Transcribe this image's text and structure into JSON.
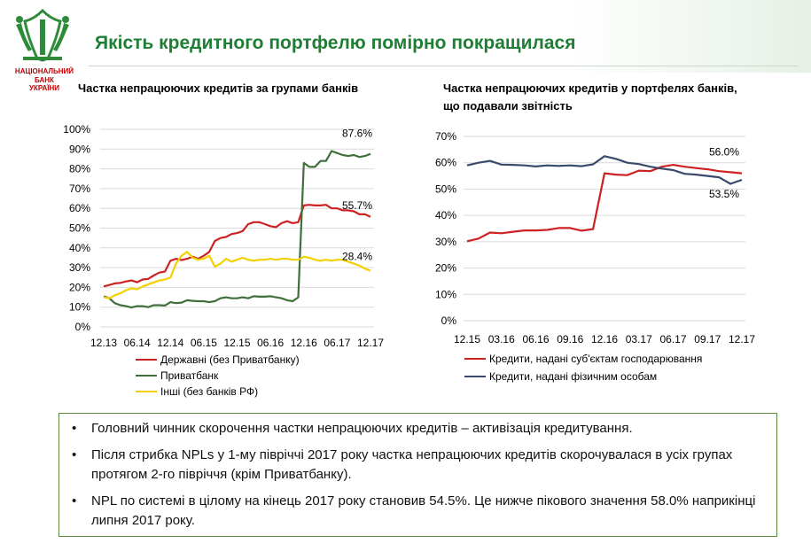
{
  "header": {
    "title": "Якість кредитного портфелю помірно покращилася",
    "bank_name_lines": [
      "НАЦІОНАЛЬНИЙ",
      "БАНК",
      "УКРАЇНИ"
    ],
    "colors": {
      "title": "#1e7e34",
      "bank_name": "#c00000"
    }
  },
  "chart_data": [
    {
      "type": "line",
      "title": "Частка непрацюючих кредитів за групами банків",
      "xlabel": "",
      "ylabel": "",
      "ylim": [
        0,
        100
      ],
      "yticks": [
        "0%",
        "10%",
        "20%",
        "30%",
        "40%",
        "50%",
        "60%",
        "70%",
        "80%",
        "90%",
        "100%"
      ],
      "xticks": [
        "12.13",
        "06.14",
        "12.14",
        "06.15",
        "12.15",
        "06.16",
        "12.16",
        "06.17",
        "12.17"
      ],
      "n_points": 49,
      "legend_position": "bottom",
      "series": [
        {
          "name": "Державні (без Приватбанку)",
          "color": "#cc2222",
          "end_label": "55.7%",
          "values": [
            20.5,
            21.2,
            22,
            22.3,
            23,
            23.5,
            22.6,
            24,
            24.3,
            26,
            27.5,
            28,
            33.5,
            34.5,
            33.8,
            34.5,
            35.5,
            34.5,
            36,
            38,
            43.5,
            45,
            45.5,
            47,
            47.5,
            48.5,
            52,
            53,
            53,
            52,
            51,
            50.5,
            52.5,
            53.5,
            52.5,
            53,
            61.5,
            61.8,
            61.5,
            61.5,
            61.8,
            60,
            60,
            59,
            59,
            58.5,
            57,
            57,
            55.7
          ]
        },
        {
          "name": "Приватбанк",
          "color": "#3f6f3a",
          "end_label": "87.6%",
          "values": [
            15.5,
            14.5,
            12,
            11,
            10.5,
            9.8,
            10.5,
            10.5,
            10,
            11,
            11,
            10.8,
            12.5,
            12,
            12.3,
            13.5,
            13.2,
            13,
            13,
            12.5,
            13,
            14.5,
            15,
            14.5,
            14.5,
            15,
            14.5,
            15.5,
            15.3,
            15.3,
            15.5,
            15,
            14.5,
            13.5,
            13,
            15,
            83,
            81,
            81,
            84,
            84,
            89,
            88,
            87,
            86.5,
            87,
            86,
            86.5,
            87.6
          ]
        },
        {
          "name": "Інші (без банків РФ)",
          "color": "#f5d000",
          "end_label": "28.4%",
          "values": [
            15,
            14.5,
            16,
            17,
            18.5,
            19.5,
            19,
            20.5,
            21.5,
            22.5,
            23.5,
            24,
            25,
            32,
            36,
            38,
            35,
            34,
            34.5,
            36,
            30.5,
            32,
            34.5,
            33,
            34,
            35,
            34,
            33.5,
            34,
            34,
            34.5,
            34,
            34.5,
            34.5,
            34,
            34,
            35.5,
            35,
            34,
            33.5,
            34,
            33.5,
            34,
            34,
            33,
            32,
            31,
            29.5,
            28.4
          ]
        }
      ]
    },
    {
      "type": "line",
      "title_lines": [
        "Частка непрацюючих кредитів у портфелях банків,",
        "що подавали звітність"
      ],
      "xlabel": "",
      "ylabel": "",
      "ylim": [
        0,
        70
      ],
      "yticks": [
        "0%",
        "10%",
        "20%",
        "30%",
        "40%",
        "50%",
        "60%",
        "70%"
      ],
      "xticks": [
        "12.15",
        "03.16",
        "06.16",
        "09.16",
        "12.16",
        "03.17",
        "06.17",
        "09.17",
        "12.17"
      ],
      "n_points": 25,
      "legend_position": "bottom",
      "series": [
        {
          "name": "Кредити, надані суб'єктам господарювання",
          "color": "#cc2222",
          "end_label": "56.0%",
          "values": [
            30.2,
            31.2,
            33.5,
            33.2,
            33.8,
            34.3,
            34.3,
            34.5,
            35.2,
            35.2,
            34.2,
            34.8,
            56,
            55.5,
            55.3,
            57,
            56.8,
            58.5,
            59.2,
            58.5,
            58,
            57.5,
            56.8,
            56.4,
            56.0
          ]
        },
        {
          "name": "Кредити, надані фізичним особам",
          "color": "#3a4a6b",
          "end_label": "53.5%",
          "values": [
            59,
            60,
            60.7,
            59.3,
            59.2,
            59,
            58.6,
            59,
            58.8,
            59,
            58.7,
            59.4,
            62.5,
            61.5,
            60,
            59.5,
            58.5,
            57.8,
            57.2,
            55.8,
            55.5,
            55,
            54.5,
            52,
            53.5
          ]
        }
      ]
    }
  ],
  "notes": [
    "Головний чинник скорочення частки непрацюючих кредитів – активізація кредитування.",
    "Після стрибка NPLs у 1-му півріччі 2017 року частка непрацюючих кредитів скорочувалася в усіх групах протягом 2-го півріччя (крім Приватбанку).",
    "NPL по системі в цілому на кінець 2017 року становив 54.5%. Це нижче пікового значення 58.0% наприкінці липня 2017 року."
  ]
}
